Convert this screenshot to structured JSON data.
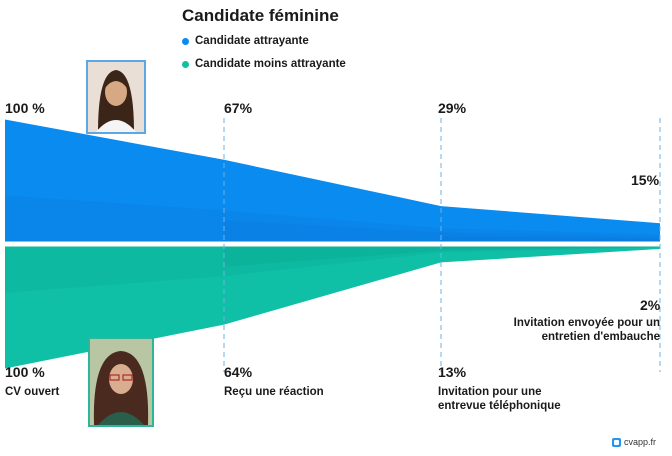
{
  "title": "Candidate féminine",
  "legend": [
    {
      "label": "Candidate attrayante",
      "color": "#0a8bf0"
    },
    {
      "label": "Candidate moins attrayante",
      "color": "#0fc0a6"
    }
  ],
  "chart_data": {
    "type": "area",
    "title": "Candidate féminine",
    "categories": [
      "CV ouvert",
      "Reçu une réaction",
      "Invitation pour une entrevue téléphonique",
      "Invitation envoyée pour un entretien d'embauche"
    ],
    "ylim": [
      0,
      100
    ],
    "series": [
      {
        "name": "Candidate attrayante",
        "labels": [
          "100 %",
          "67%",
          "29%",
          "15%"
        ],
        "values": [
          100,
          67,
          29,
          15
        ],
        "color": "#0a8bf0"
      },
      {
        "name": "Candidate moins attrayante",
        "labels": [
          "100 %",
          "64%",
          "13%",
          "2%"
        ],
        "values": [
          100,
          64,
          13,
          2
        ],
        "color": "#0fc0a6"
      }
    ],
    "grid": false,
    "legend": "top"
  },
  "stages": {
    "s1": "CV ouvert",
    "s2": "Reçu une réaction",
    "s3_line1": "Invitation pour une",
    "s3_line2": "entrevue téléphonique",
    "s4_line1": "Invitation envoyée pour un",
    "s4_line2": "entretien d'embauche"
  },
  "icons": {
    "top_photo": "woman-portrait-icon",
    "bottom_photo": "woman-portrait-icon",
    "brand": "cvapp-logo-icon"
  },
  "brand": "cvapp.fr"
}
